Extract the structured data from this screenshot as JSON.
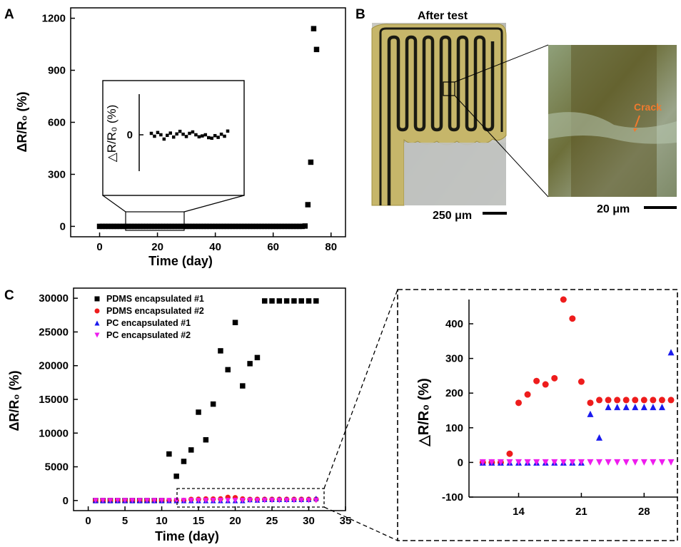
{
  "chart_data": [
    {
      "panel": "A",
      "type": "scatter",
      "xlabel": "Time (day)",
      "ylabel": "ΔR/R₀ (%)",
      "xlim": [
        -10,
        85
      ],
      "ylim": [
        -60,
        1260
      ],
      "xticks": [
        0,
        20,
        40,
        60,
        80
      ],
      "yticks": [
        0,
        300,
        600,
        900,
        1200
      ],
      "series": [
        {
          "color": "#000000",
          "marker": "square",
          "x": [
            0,
            1,
            2,
            3,
            4,
            5,
            6,
            7,
            8,
            9,
            10,
            11,
            12,
            13,
            14,
            15,
            16,
            17,
            18,
            19,
            20,
            21,
            22,
            23,
            24,
            25,
            26,
            27,
            28,
            29,
            30,
            31,
            32,
            33,
            34,
            35,
            36,
            37,
            38,
            39,
            40,
            41,
            42,
            43,
            44,
            45,
            46,
            47,
            48,
            49,
            50,
            51,
            52,
            53,
            54,
            55,
            56,
            57,
            58,
            59,
            60,
            61,
            62,
            63,
            64,
            65,
            66,
            67,
            68,
            69,
            70,
            71,
            72,
            73,
            74,
            75
          ],
          "y": [
            0,
            0,
            0,
            0,
            0,
            0,
            0,
            0,
            0,
            0,
            0,
            0,
            0,
            0,
            0,
            0,
            0,
            0,
            0,
            0,
            0,
            0,
            0,
            0,
            0,
            0,
            0,
            0,
            0,
            0,
            0,
            0,
            0,
            0,
            0,
            0,
            0,
            0,
            0,
            0,
            0,
            0,
            0,
            0,
            0,
            0,
            0,
            0,
            0,
            0,
            0,
            0,
            0,
            0,
            0,
            0,
            0,
            0,
            0,
            0,
            0,
            0,
            0,
            0,
            0,
            0,
            0,
            0,
            0,
            0,
            0,
            2,
            125,
            370,
            1140,
            1020
          ]
        }
      ],
      "inset": {
        "ylabel": "△R/R₀ (%)",
        "ytick": "0",
        "xrange": [
          11,
          30
        ],
        "y_percent": [
          0.5,
          -0.5,
          0.8,
          0.0,
          -1.5,
          -0.2,
          0.6,
          -0.8,
          0.3,
          1.2,
          0.2,
          -0.6,
          0.5,
          1.0,
          0.0,
          -0.7,
          -0.4,
          0.0,
          -1.0,
          -1.2,
          -0.3,
          -0.9,
          0.2,
          -0.5,
          1.3
        ]
      }
    },
    {
      "panel": "C",
      "type": "scatter",
      "xlabel": "Time (day)",
      "ylabel": "ΔR/R₀ (%)",
      "xlim": [
        -2,
        35
      ],
      "ylim": [
        -1500,
        31500
      ],
      "xticks": [
        0,
        5,
        10,
        15,
        20,
        25,
        30,
        35
      ],
      "yticks": [
        0,
        5000,
        10000,
        15000,
        20000,
        25000,
        30000
      ],
      "legend_position": "top-left",
      "series": [
        {
          "name": "PDMS encapsulated #1",
          "color": "#000000",
          "marker": "square",
          "x": [
            1,
            2,
            3,
            4,
            5,
            6,
            7,
            8,
            9,
            10,
            11,
            12,
            13,
            14,
            15,
            16,
            17,
            18,
            19,
            20,
            21,
            22,
            23,
            24,
            25,
            26,
            27,
            28,
            29,
            30,
            31
          ],
          "y": [
            0,
            0,
            0,
            0,
            0,
            0,
            0,
            0,
            0,
            0,
            6900,
            3600,
            5800,
            7500,
            13100,
            9000,
            14300,
            22200,
            19400,
            26400,
            17000,
            20300,
            21200,
            29600,
            29600,
            29600,
            29600,
            29600,
            29600,
            29600,
            29600
          ]
        },
        {
          "name": "PDMS encapsulated #2",
          "color": "#ee1c1c",
          "marker": "circle",
          "x": [
            1,
            2,
            3,
            4,
            5,
            6,
            7,
            8,
            9,
            10,
            11,
            12,
            13,
            14,
            15,
            16,
            17,
            18,
            19,
            20,
            21,
            22,
            23,
            24,
            25,
            26,
            27,
            28,
            29,
            30,
            31
          ],
          "y": [
            0,
            0,
            0,
            0,
            0,
            0,
            0,
            0,
            0,
            0,
            0,
            0,
            25,
            172,
            196,
            235,
            225,
            243,
            470,
            415,
            233,
            172,
            180,
            180,
            180,
            180,
            180,
            180,
            180,
            180,
            180
          ]
        },
        {
          "name": "PC encapsulated #1",
          "color": "#1a1aee",
          "marker": "triangle-up",
          "x": [
            1,
            2,
            3,
            4,
            5,
            6,
            7,
            8,
            9,
            10,
            11,
            12,
            13,
            14,
            15,
            16,
            17,
            18,
            19,
            20,
            21,
            22,
            23,
            24,
            25,
            26,
            27,
            28,
            29,
            30,
            31
          ],
          "y": [
            0,
            0,
            0,
            0,
            0,
            0,
            0,
            0,
            0,
            0,
            0,
            0,
            0,
            0,
            0,
            0,
            0,
            0,
            0,
            0,
            0,
            140,
            72,
            160,
            160,
            160,
            160,
            160,
            160,
            160,
            318
          ]
        },
        {
          "name": "PC encapsulated #2",
          "color": "#ee1cee",
          "marker": "triangle-down",
          "x": [
            1,
            2,
            3,
            4,
            5,
            6,
            7,
            8,
            9,
            10,
            11,
            12,
            13,
            14,
            15,
            16,
            17,
            18,
            19,
            20,
            21,
            22,
            23,
            24,
            25,
            26,
            27,
            28,
            29,
            30,
            31
          ],
          "y": [
            0,
            0,
            0,
            0,
            0,
            0,
            0,
            0,
            0,
            0,
            0,
            0,
            0,
            0,
            0,
            0,
            0,
            0,
            0,
            0,
            0,
            0,
            0,
            0,
            0,
            0,
            0,
            0,
            0,
            0,
            0
          ]
        }
      ],
      "zoom": {
        "xlim": [
          9.5,
          31
        ],
        "ylim": [
          -100,
          470
        ],
        "xticks": [
          14,
          21,
          28
        ],
        "yticks": [
          -100,
          0,
          100,
          200,
          300,
          400
        ],
        "ylabel": "△R/R₀ (%)",
        "day_range": [
          10,
          31
        ]
      }
    }
  ],
  "panel_labels": {
    "a": "A",
    "b": "B",
    "c": "C"
  },
  "panel_b": {
    "title": "After test",
    "scale_left": "250 μm",
    "scale_right": "20 μm",
    "crack_label": "Crack"
  }
}
